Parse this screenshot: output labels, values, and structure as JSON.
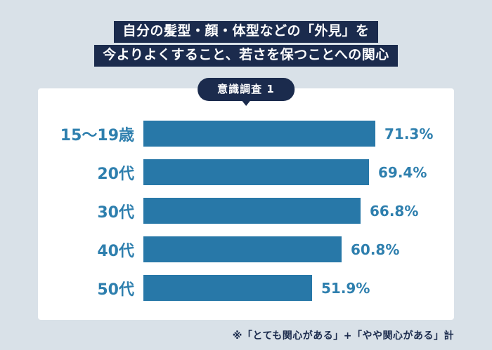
{
  "title": {
    "line1": "自分の髪型・顔・体型などの「外見」を",
    "line2": "今よりよくすること、若さを保つことへの関心",
    "bg_color": "#1b2b4d",
    "text_color": "#ffffff"
  },
  "badge": {
    "label": "意識調査 1"
  },
  "chart_data": {
    "type": "bar",
    "orientation": "horizontal",
    "categories": [
      "15〜19歳",
      "20代",
      "30代",
      "40代",
      "50代"
    ],
    "values": [
      71.3,
      69.4,
      66.8,
      60.8,
      51.9
    ],
    "value_labels": [
      "71.3%",
      "69.4%",
      "66.8%",
      "60.8%",
      "51.9%"
    ],
    "xlim": [
      0,
      100
    ],
    "grid": false,
    "legend": "none",
    "bar_color": "#2878a8",
    "label_color": "#2e7fae"
  },
  "footnote": "※「とても関心がある」+「やや関心がある」計",
  "colors": {
    "background": "#d9e1e8",
    "card": "#ffffff",
    "navy": "#1b2b4d",
    "bar_blue": "#2878a8",
    "text_blue": "#2e7fae"
  }
}
